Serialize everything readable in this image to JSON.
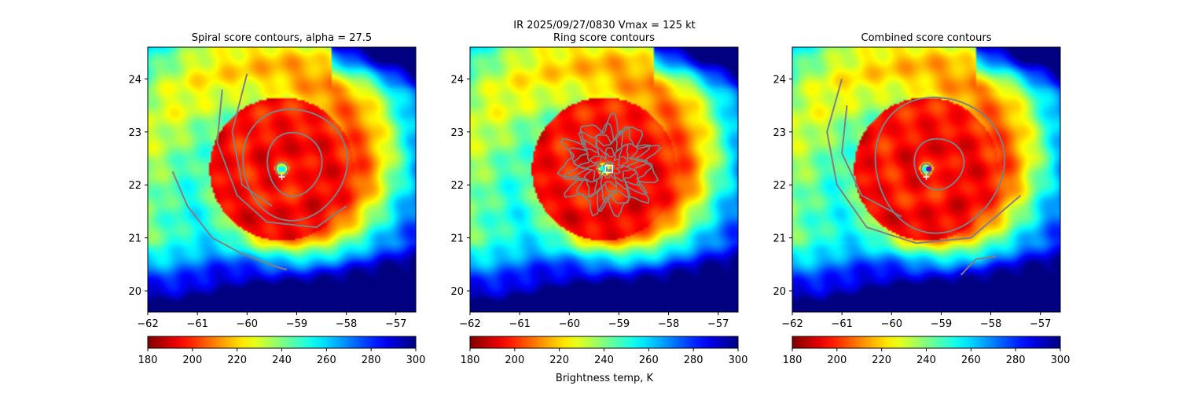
{
  "suptitle": {
    "line1": "IR  2025/09/27/0830    Vmax = 125 kt",
    "line2": "Ring score contours"
  },
  "colorbar_label": "Brightness temp, K",
  "colors": {
    "contour": "#808080",
    "marker_white": "#ffffff",
    "center_dot": "#6a0dad",
    "axes": "#000000"
  },
  "chart_data": [
    {
      "type": "heatmap",
      "title": "Spiral score contours, alpha = 27.5",
      "variable": "IR brightness temperature (K)",
      "colormap": "jet_r",
      "xlim": [
        -62.0,
        -56.6
      ],
      "ylim": [
        19.6,
        24.6
      ],
      "xticks": [
        -62,
        -61,
        -60,
        -59,
        -58,
        -57
      ],
      "yticks": [
        20,
        21,
        22,
        23,
        24
      ],
      "storm_center": {
        "lon": -59.3,
        "lat": 22.3
      },
      "markers": [
        {
          "symbol": "plus",
          "lon": -59.3,
          "lat": 22.15
        }
      ],
      "contours": "spiral score",
      "colorbar": {
        "min": 180,
        "max": 300,
        "ticks": [
          180,
          200,
          220,
          240,
          260,
          280,
          300
        ]
      }
    },
    {
      "type": "heatmap",
      "title": "Ring score contours",
      "variable": "IR brightness temperature (K)",
      "colormap": "jet_r",
      "xlim": [
        -62.0,
        -56.6
      ],
      "ylim": [
        19.6,
        24.6
      ],
      "xticks": [
        -62,
        -61,
        -60,
        -59,
        -58,
        -57
      ],
      "yticks": [
        20,
        21,
        22,
        23,
        24
      ],
      "storm_center": {
        "lon": -59.3,
        "lat": 22.3
      },
      "markers": [
        {
          "symbol": "square",
          "lon": -59.2,
          "lat": 22.3
        }
      ],
      "contours": "ring score",
      "colorbar": {
        "min": 180,
        "max": 300,
        "ticks": [
          180,
          200,
          220,
          240,
          260,
          280,
          300
        ]
      }
    },
    {
      "type": "heatmap",
      "title": "Combined score contours",
      "variable": "IR brightness temperature (K)",
      "colormap": "jet_r",
      "xlim": [
        -62.0,
        -56.6
      ],
      "ylim": [
        19.6,
        24.6
      ],
      "xticks": [
        -62,
        -61,
        -60,
        -59,
        -58,
        -57
      ],
      "yticks": [
        20,
        21,
        22,
        23,
        24
      ],
      "storm_center": {
        "lon": -59.3,
        "lat": 22.3
      },
      "markers": [
        {
          "symbol": "plus",
          "lon": -59.3,
          "lat": 22.15
        },
        {
          "symbol": "dot",
          "lon": -59.25,
          "lat": 22.3
        }
      ],
      "contours": "combined score",
      "colorbar": {
        "min": 180,
        "max": 300,
        "ticks": [
          180,
          200,
          220,
          240,
          260,
          280,
          300
        ]
      }
    }
  ]
}
